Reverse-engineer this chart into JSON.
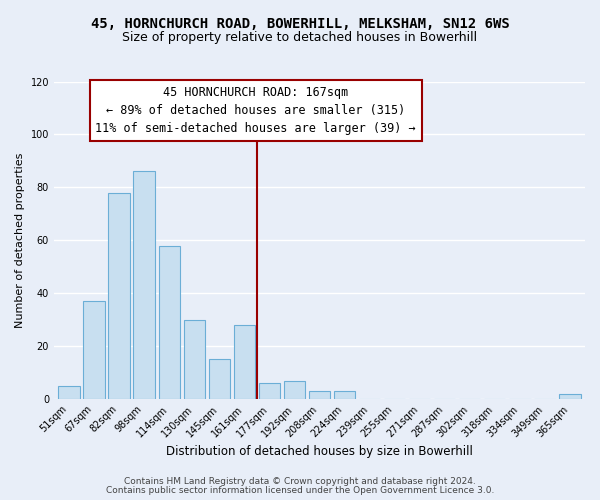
{
  "title1": "45, HORNCHURCH ROAD, BOWERHILL, MELKSHAM, SN12 6WS",
  "title2": "Size of property relative to detached houses in Bowerhill",
  "xlabel": "Distribution of detached houses by size in Bowerhill",
  "ylabel": "Number of detached properties",
  "bar_labels": [
    "51sqm",
    "67sqm",
    "82sqm",
    "98sqm",
    "114sqm",
    "130sqm",
    "145sqm",
    "161sqm",
    "177sqm",
    "192sqm",
    "208sqm",
    "224sqm",
    "239sqm",
    "255sqm",
    "271sqm",
    "287sqm",
    "302sqm",
    "318sqm",
    "334sqm",
    "349sqm",
    "365sqm"
  ],
  "bar_heights": [
    5,
    37,
    78,
    86,
    58,
    30,
    15,
    28,
    6,
    7,
    3,
    3,
    0,
    0,
    0,
    0,
    0,
    0,
    0,
    0,
    2
  ],
  "bar_color": "#c8dff0",
  "bar_edge_color": "#6baed6",
  "vline_index": 7.5,
  "vline_color": "#990000",
  "ylim": [
    0,
    120
  ],
  "yticks": [
    0,
    20,
    40,
    60,
    80,
    100,
    120
  ],
  "annotation_title": "45 HORNCHURCH ROAD: 167sqm",
  "annotation_line1": "← 89% of detached houses are smaller (315)",
  "annotation_line2": "11% of semi-detached houses are larger (39) →",
  "annotation_box_facecolor": "#ffffff",
  "annotation_border_color": "#990000",
  "footer1": "Contains HM Land Registry data © Crown copyright and database right 2024.",
  "footer2": "Contains public sector information licensed under the Open Government Licence 3.0.",
  "background_color": "#e8eef8",
  "plot_background": "#e8eef8",
  "grid_color": "#ffffff",
  "title1_fontsize": 10,
  "title2_fontsize": 9,
  "xlabel_fontsize": 8.5,
  "ylabel_fontsize": 8,
  "tick_fontsize": 7,
  "footer_fontsize": 6.5,
  "ann_fontsize": 8.5
}
